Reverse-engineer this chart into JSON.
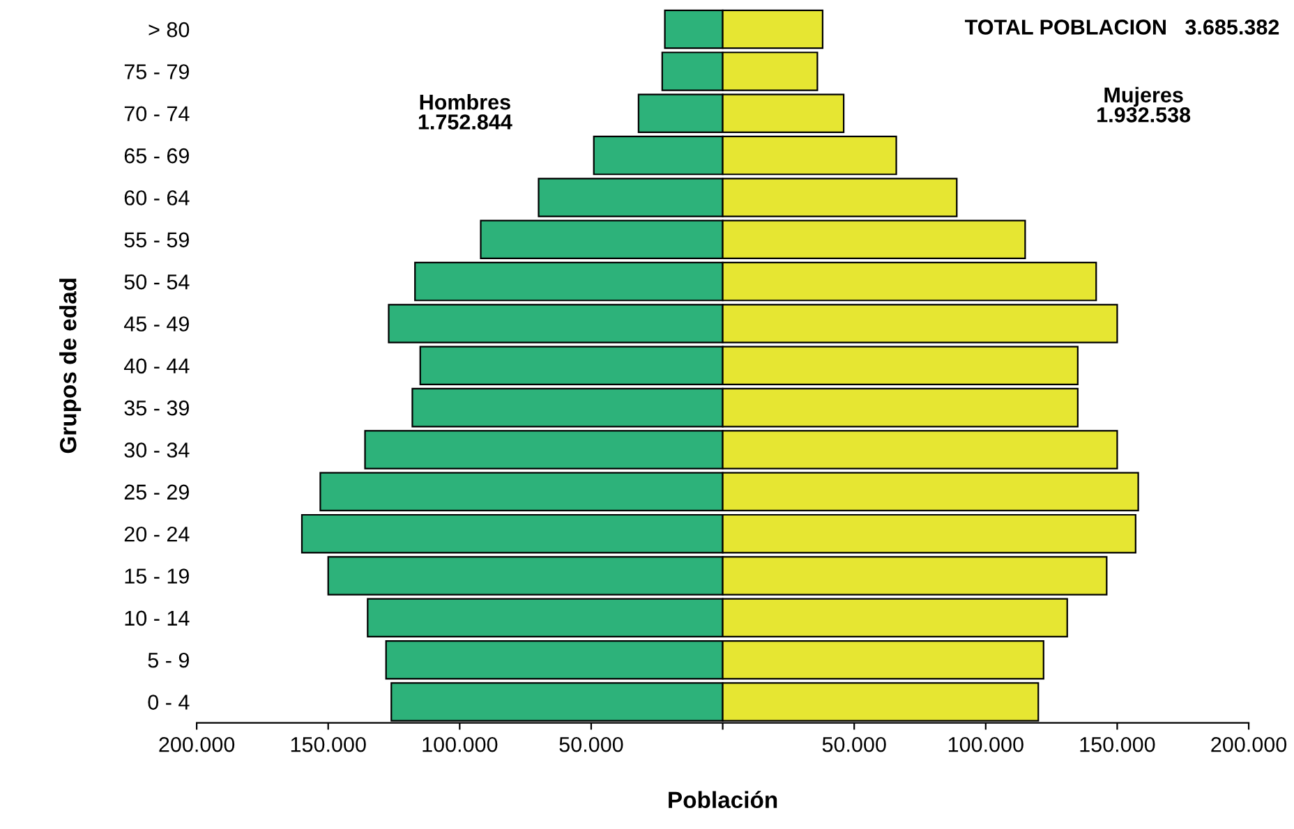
{
  "chart_data": {
    "type": "bar",
    "orientation": "horizontal",
    "stacked": true,
    "xlabel": "Población",
    "ylabel": "Grupos de edad",
    "categories": [
      "> 80",
      "75 - 79",
      "70 - 74",
      "65 - 69",
      "60 - 64",
      "55 - 59",
      "50 - 54",
      "45 - 49",
      "40 - 44",
      "35 - 39",
      "30 - 34",
      "25 - 29",
      "20 - 24",
      "15 - 19",
      "10 - 14",
      "5 - 9",
      "0 - 4"
    ],
    "series": [
      {
        "color": "#2db27a",
        "values": [
          -22000,
          -23000,
          -32000,
          -49000,
          -70000,
          -92000,
          -117000,
          -127000,
          -115000,
          -118000,
          -136000,
          -153000,
          -160000,
          -150000,
          -135000,
          -128000,
          -126000
        ]
      },
      {
        "color": "#e6e632",
        "values": [
          38000,
          36000,
          46000,
          66000,
          89000,
          115000,
          142000,
          150000,
          135000,
          135000,
          150000,
          158000,
          157000,
          146000,
          131000,
          122000,
          120000
        ]
      }
    ],
    "xlim": [
      -200000,
      200000
    ],
    "xticks": [
      {
        "value": -200000,
        "label": "200.000"
      },
      {
        "value": -150000,
        "label": "150.000"
      },
      {
        "value": -100000,
        "label": "100.000"
      },
      {
        "value": -50000,
        "label": "50.000"
      },
      {
        "value": 0,
        "label": null
      },
      {
        "value": 50000,
        "label": "50.000"
      },
      {
        "value": 100000,
        "label": "100.000"
      },
      {
        "value": 150000,
        "label": "150.000"
      },
      {
        "value": 200000,
        "label": "200.000"
      }
    ],
    "annotations": [
      "TOTAL POBLACION   3.685.382",
      "Hombres\n1.752.844",
      "Mujeres\n1.932.538"
    ],
    "grid": false,
    "legend": false
  }
}
